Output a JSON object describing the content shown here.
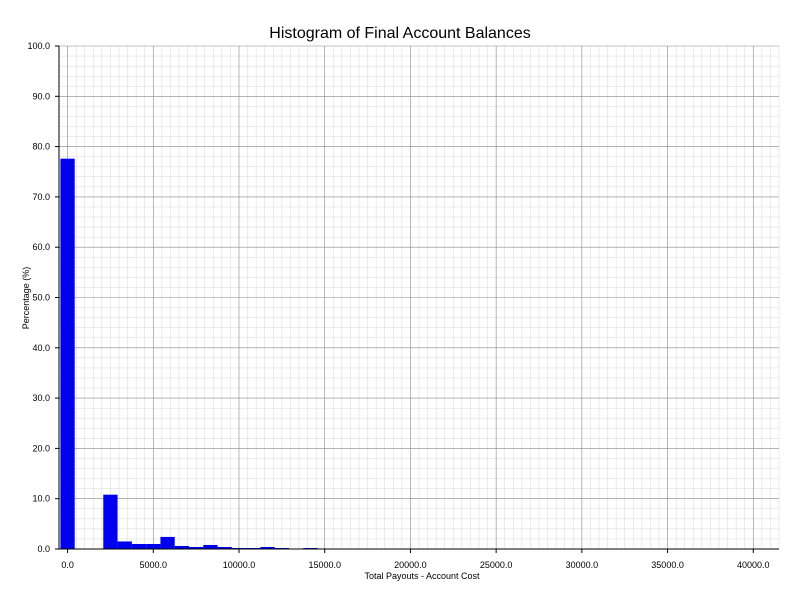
{
  "chart_data": {
    "type": "bar",
    "title": "Histogram of Final Account Balances",
    "xlabel": "Total Payouts - Account Cost",
    "ylabel": "Percentage (%)",
    "xlim": [
      -500,
      41500
    ],
    "ylim": [
      0,
      100
    ],
    "grid": true,
    "bin_width": 833,
    "x_ticks": [
      "0.0",
      "5000.0",
      "10000.0",
      "15000.0",
      "20000.0",
      "25000.0",
      "30000.0",
      "35000.0",
      "40000.0"
    ],
    "x_tick_values": [
      0,
      5000,
      10000,
      15000,
      20000,
      25000,
      30000,
      35000,
      40000
    ],
    "y_ticks": [
      "0.0",
      "10.0",
      "20.0",
      "30.0",
      "40.0",
      "50.0",
      "60.0",
      "70.0",
      "80.0",
      "90.0",
      "100.0"
    ],
    "y_tick_values": [
      0,
      10,
      20,
      30,
      40,
      50,
      60,
      70,
      80,
      90,
      100
    ],
    "bars": [
      {
        "x": -417,
        "value": 77.6
      },
      {
        "x": 2083,
        "value": 10.8
      },
      {
        "x": 2917,
        "value": 1.5
      },
      {
        "x": 3750,
        "value": 1.0
      },
      {
        "x": 4583,
        "value": 1.0
      },
      {
        "x": 5417,
        "value": 2.4
      },
      {
        "x": 6250,
        "value": 0.6
      },
      {
        "x": 7083,
        "value": 0.4
      },
      {
        "x": 7917,
        "value": 0.8
      },
      {
        "x": 8750,
        "value": 0.4
      },
      {
        "x": 9583,
        "value": 0.2
      },
      {
        "x": 10417,
        "value": 0.2
      },
      {
        "x": 11250,
        "value": 0.4
      },
      {
        "x": 12083,
        "value": 0.2
      },
      {
        "x": 13750,
        "value": 0.2
      }
    ],
    "colors": {
      "bar": "#0000ee",
      "grid_major": "#888888",
      "grid_minor": "#d8d8d8",
      "axis": "#000000"
    }
  }
}
